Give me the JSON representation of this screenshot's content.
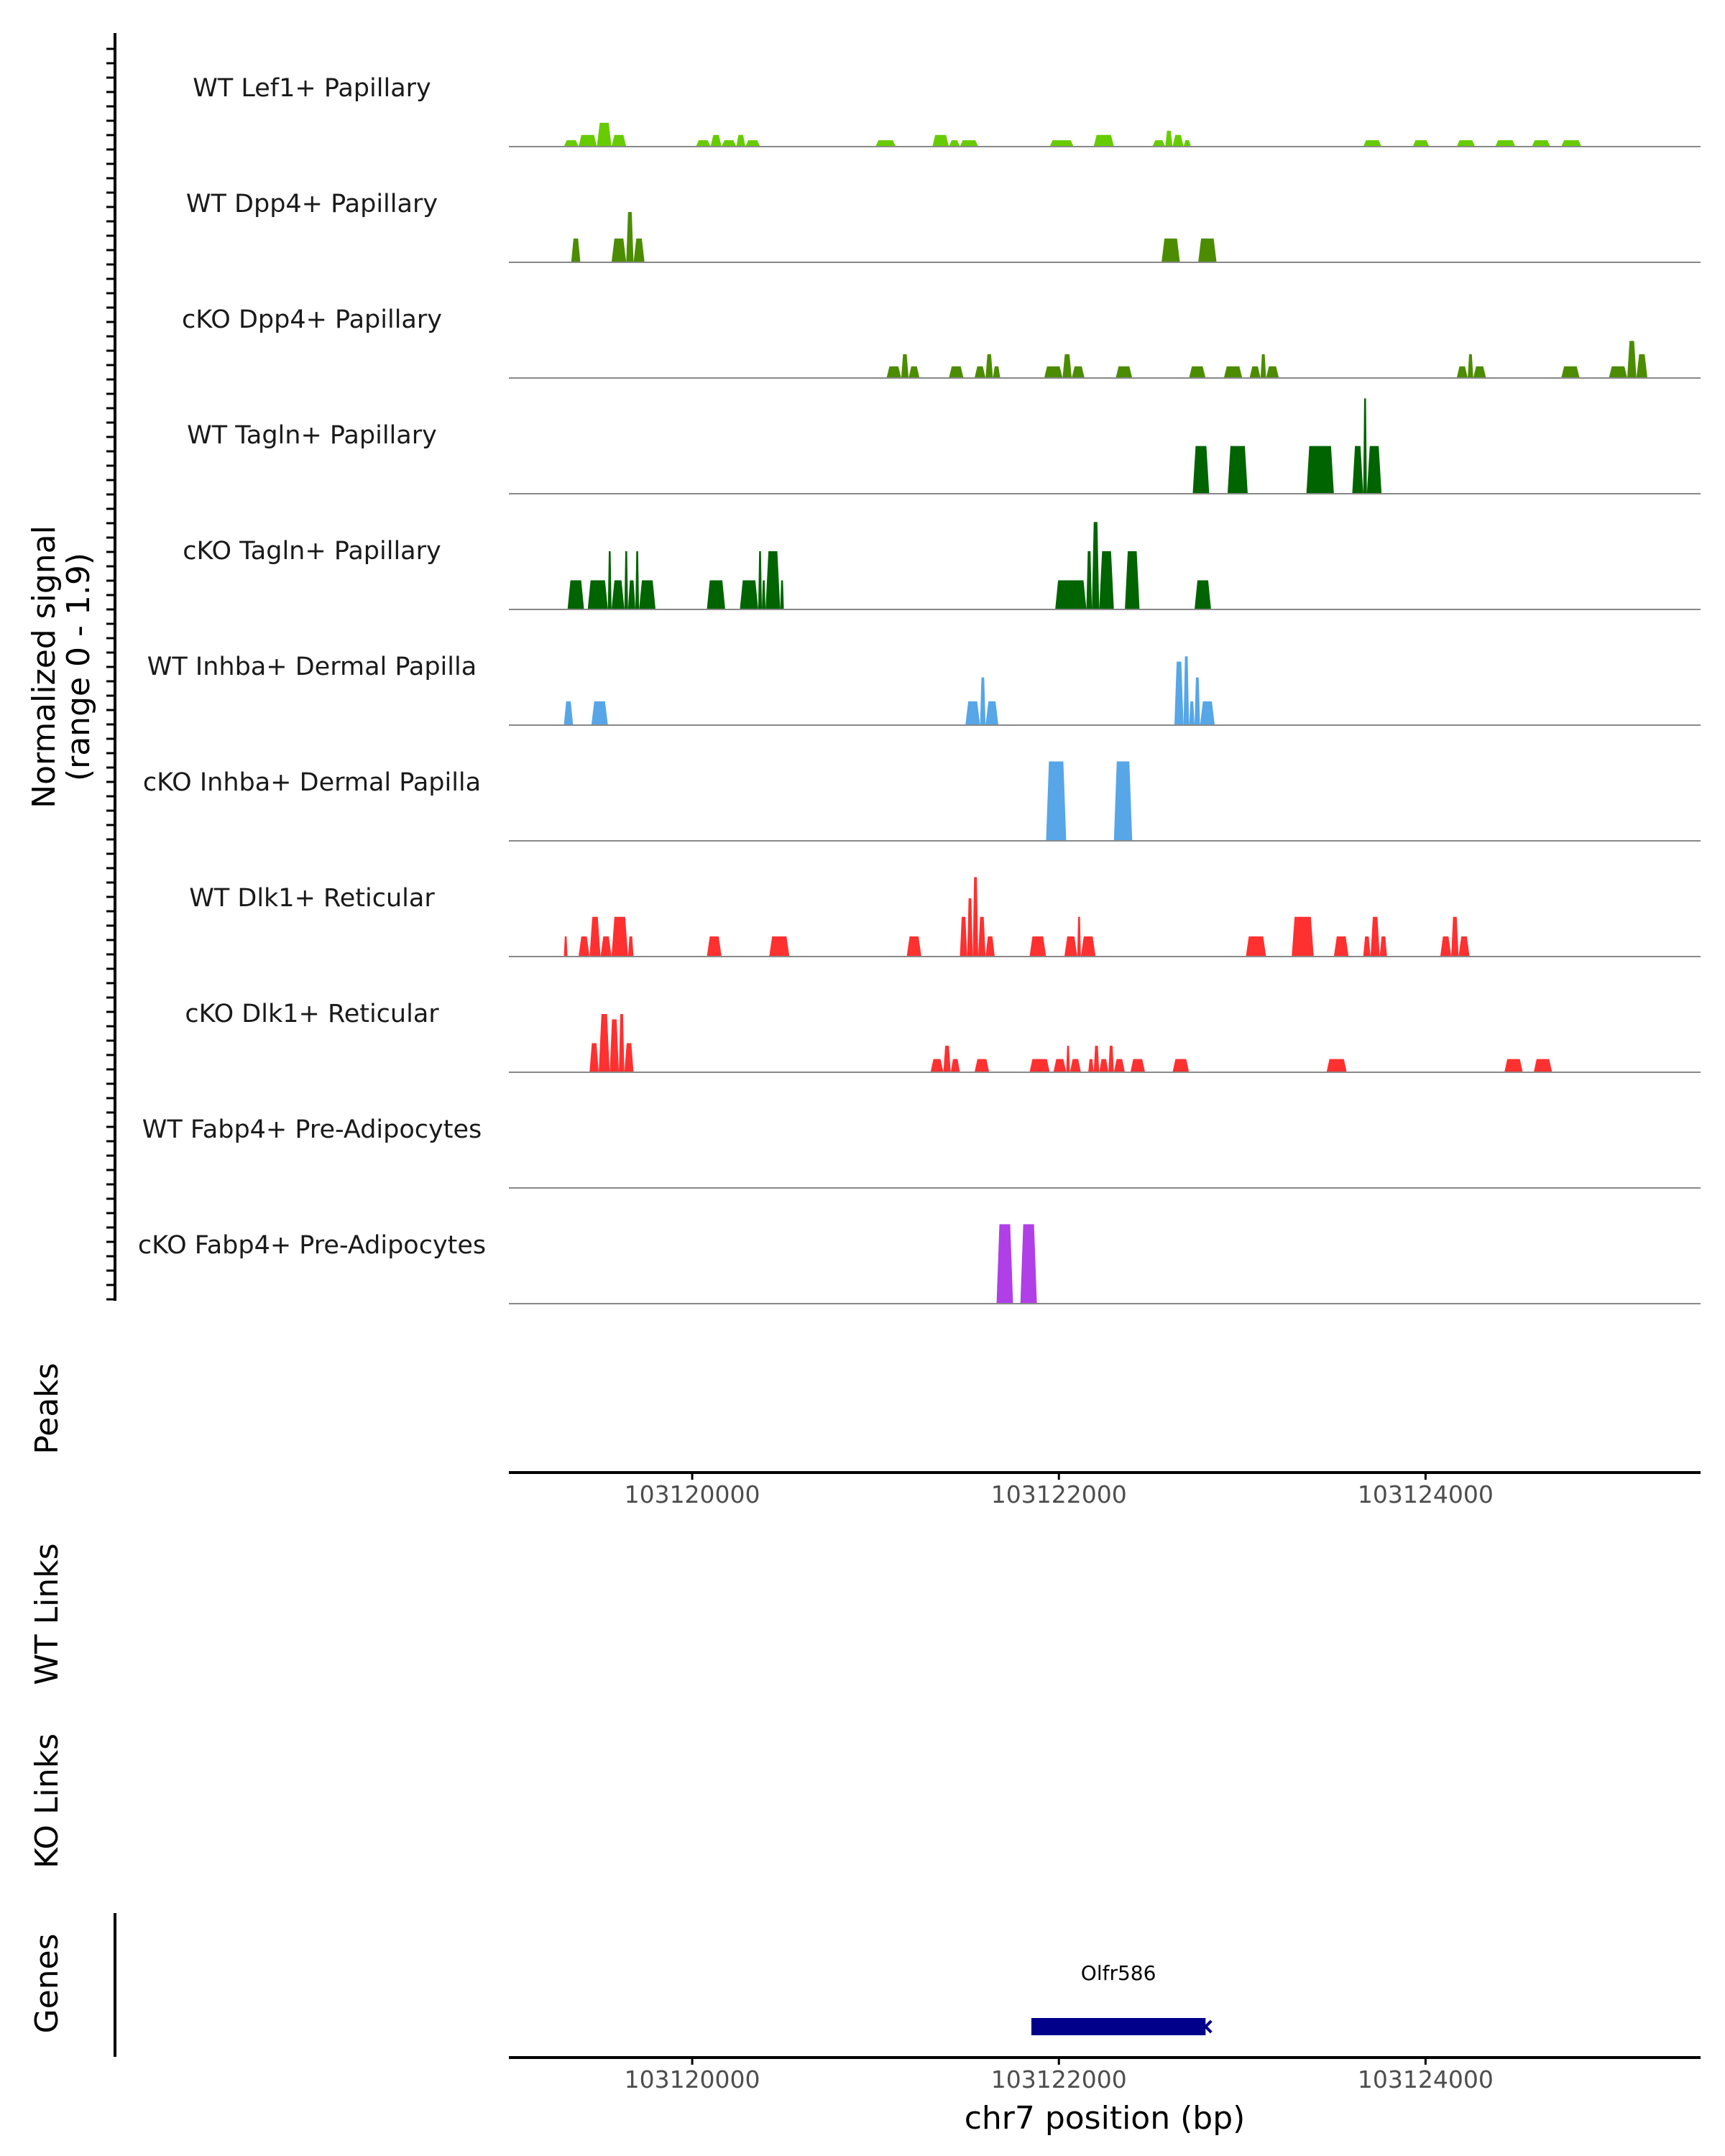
{
  "chart_data": {
    "type": "area",
    "xlabel": "chr7 position (bp)",
    "xlim": [
      103119000,
      103125500
    ],
    "xticks": [
      {
        "value": 103120000,
        "label": "103120000"
      },
      {
        "value": 103122000,
        "label": "103122000"
      },
      {
        "value": 103124000,
        "label": "103124000"
      }
    ],
    "ylabel_line1": "Normalized signal",
    "ylabel_line2": "(range 0 - 1.9)",
    "ylim": [
      0,
      1.9
    ],
    "panels": {
      "peaks": "Peaks",
      "wt_links": "WT Links",
      "ko_links": "KO Links",
      "genes": "Genes"
    },
    "gene": {
      "name": "Olfr586",
      "start": 103121850,
      "end": 103122800,
      "strand": "-",
      "color": "#00008b"
    },
    "tracks": [
      {
        "name": "WT Lef1+ Papillary",
        "color": "#66cc00",
        "blocks": [
          [
            103119300,
            103119380,
            0.12
          ],
          [
            103119380,
            103119480,
            0.22
          ],
          [
            103119480,
            103119560,
            0.45
          ],
          [
            103119560,
            103119640,
            0.22
          ],
          [
            103120020,
            103120100,
            0.12
          ],
          [
            103120100,
            103120160,
            0.22
          ],
          [
            103120160,
            103120240,
            0.12
          ],
          [
            103120240,
            103120290,
            0.22
          ],
          [
            103120290,
            103120370,
            0.12
          ],
          [
            103121000,
            103121110,
            0.12
          ],
          [
            103121310,
            103121400,
            0.22
          ],
          [
            103121400,
            103121460,
            0.12
          ],
          [
            103121460,
            103121560,
            0.12
          ],
          [
            103121950,
            103122080,
            0.12
          ],
          [
            103122190,
            103122300,
            0.22
          ],
          [
            103122510,
            103122580,
            0.12
          ],
          [
            103122580,
            103122620,
            0.3
          ],
          [
            103122620,
            103122680,
            0.22
          ],
          [
            103122680,
            103122720,
            0.12
          ],
          [
            103123660,
            103123760,
            0.12
          ],
          [
            103123930,
            103124020,
            0.12
          ],
          [
            103124170,
            103124270,
            0.12
          ],
          [
            103124380,
            103124490,
            0.12
          ],
          [
            103124580,
            103124680,
            0.12
          ],
          [
            103124740,
            103124850,
            0.12
          ]
        ]
      },
      {
        "name": "WT Dpp4+ Papillary",
        "color": "#4c8c00",
        "blocks": [
          [
            103119340,
            103119390,
            0.45
          ],
          [
            103119560,
            103119640,
            0.45
          ],
          [
            103119640,
            103119680,
            0.95
          ],
          [
            103119680,
            103119740,
            0.45
          ],
          [
            103122560,
            103122660,
            0.45
          ],
          [
            103122760,
            103122860,
            0.45
          ]
        ]
      },
      {
        "name": "cKO Dpp4+ Papillary",
        "color": "#4c8c00",
        "blocks": [
          [
            103121060,
            103121140,
            0.22
          ],
          [
            103121140,
            103121180,
            0.45
          ],
          [
            103121180,
            103121240,
            0.22
          ],
          [
            103121400,
            103121480,
            0.22
          ],
          [
            103121540,
            103121600,
            0.22
          ],
          [
            103121600,
            103121640,
            0.45
          ],
          [
            103121640,
            103121680,
            0.22
          ],
          [
            103121920,
            103122020,
            0.22
          ],
          [
            103122020,
            103122070,
            0.45
          ],
          [
            103122070,
            103122140,
            0.22
          ],
          [
            103122310,
            103122400,
            0.22
          ],
          [
            103122710,
            103122800,
            0.22
          ],
          [
            103122900,
            103123000,
            0.22
          ],
          [
            103123040,
            103123100,
            0.22
          ],
          [
            103123100,
            103123130,
            0.45
          ],
          [
            103123130,
            103123200,
            0.22
          ],
          [
            103124170,
            103124230,
            0.22
          ],
          [
            103124230,
            103124260,
            0.45
          ],
          [
            103124260,
            103124330,
            0.22
          ],
          [
            103124740,
            103124840,
            0.22
          ],
          [
            103125000,
            103125100,
            0.22
          ],
          [
            103125100,
            103125150,
            0.7
          ],
          [
            103125150,
            103125210,
            0.45
          ]
        ]
      },
      {
        "name": "WT Tagln+ Papillary",
        "color": "#006400",
        "blocks": [
          [
            103122730,
            103122820,
            0.9
          ],
          [
            103122920,
            103123030,
            0.9
          ],
          [
            103123350,
            103123500,
            0.9
          ],
          [
            103123600,
            103123660,
            0.9
          ],
          [
            103123660,
            103123680,
            1.8
          ],
          [
            103123680,
            103123760,
            0.9
          ]
        ]
      },
      {
        "name": "cKO Tagln+ Papillary",
        "color": "#006400",
        "blocks": [
          [
            103119320,
            103119410,
            0.55
          ],
          [
            103119430,
            103119540,
            0.55
          ],
          [
            103119540,
            103119560,
            1.1
          ],
          [
            103119560,
            103119630,
            0.55
          ],
          [
            103119630,
            103119650,
            1.1
          ],
          [
            103119650,
            103119690,
            0.55
          ],
          [
            103119690,
            103119710,
            1.1
          ],
          [
            103119710,
            103119800,
            0.55
          ],
          [
            103120080,
            103120180,
            0.55
          ],
          [
            103120260,
            103120360,
            0.55
          ],
          [
            103120360,
            103120380,
            1.1
          ],
          [
            103120380,
            103120400,
            0.55
          ],
          [
            103120400,
            103120480,
            1.1
          ],
          [
            103120480,
            103120500,
            0.55
          ],
          [
            103121980,
            103122150,
            0.55
          ],
          [
            103122150,
            103122180,
            1.1
          ],
          [
            103122180,
            103122220,
            1.65
          ],
          [
            103122220,
            103122300,
            1.1
          ],
          [
            103122360,
            103122440,
            1.1
          ],
          [
            103122740,
            103122830,
            0.55
          ]
        ]
      },
      {
        "name": "WT Inhba+ Dermal Papilla",
        "color": "#56a6e8",
        "blocks": [
          [
            103119300,
            103119350,
            0.45
          ],
          [
            103119450,
            103119540,
            0.45
          ],
          [
            103121490,
            103121570,
            0.45
          ],
          [
            103121570,
            103121600,
            0.9
          ],
          [
            103121600,
            103121670,
            0.45
          ],
          [
            103122630,
            103122680,
            1.2
          ],
          [
            103122680,
            103122710,
            1.3
          ],
          [
            103122710,
            103122740,
            0.45
          ],
          [
            103122740,
            103122770,
            0.9
          ],
          [
            103122770,
            103122850,
            0.45
          ]
        ]
      },
      {
        "name": "cKO Inhba+ Dermal Papilla",
        "color": "#56a6e8",
        "blocks": [
          [
            103121930,
            103122040,
            1.5
          ],
          [
            103122300,
            103122400,
            1.5
          ]
        ]
      },
      {
        "name": "WT Dlk1+ Reticular",
        "color": "#ff3030",
        "blocks": [
          [
            103119300,
            103119320,
            0.38
          ],
          [
            103119380,
            103119440,
            0.38
          ],
          [
            103119440,
            103119500,
            0.75
          ],
          [
            103119500,
            103119560,
            0.38
          ],
          [
            103119560,
            103119650,
            0.75
          ],
          [
            103119650,
            103119680,
            0.38
          ],
          [
            103120080,
            103120160,
            0.38
          ],
          [
            103120420,
            103120530,
            0.38
          ],
          [
            103121170,
            103121250,
            0.38
          ],
          [
            103121460,
            103121500,
            0.75
          ],
          [
            103121500,
            103121530,
            1.1
          ],
          [
            103121530,
            103121560,
            1.5
          ],
          [
            103121560,
            103121600,
            0.75
          ],
          [
            103121600,
            103121650,
            0.38
          ],
          [
            103121840,
            103121930,
            0.38
          ],
          [
            103122030,
            103122100,
            0.38
          ],
          [
            103122100,
            103122120,
            0.75
          ],
          [
            103122120,
            103122200,
            0.38
          ],
          [
            103123020,
            103123130,
            0.38
          ],
          [
            103123270,
            103123390,
            0.75
          ],
          [
            103123500,
            103123580,
            0.38
          ],
          [
            103123660,
            103123700,
            0.38
          ],
          [
            103123700,
            103123750,
            0.75
          ],
          [
            103123750,
            103123790,
            0.38
          ],
          [
            103124080,
            103124140,
            0.38
          ],
          [
            103124140,
            103124180,
            0.75
          ],
          [
            103124180,
            103124240,
            0.38
          ]
        ]
      },
      {
        "name": "cKO Dlk1+ Reticular",
        "color": "#ff3030",
        "blocks": [
          [
            103119440,
            103119490,
            0.55
          ],
          [
            103119490,
            103119550,
            1.1
          ],
          [
            103119550,
            103119600,
            1.0
          ],
          [
            103119600,
            103119630,
            1.1
          ],
          [
            103119630,
            103119680,
            0.55
          ],
          [
            103121300,
            103121370,
            0.25
          ],
          [
            103121370,
            103121410,
            0.5
          ],
          [
            103121410,
            103121460,
            0.25
          ],
          [
            103121540,
            103121620,
            0.25
          ],
          [
            103121840,
            103121950,
            0.25
          ],
          [
            103121970,
            103122040,
            0.25
          ],
          [
            103122040,
            103122060,
            0.5
          ],
          [
            103122060,
            103122120,
            0.25
          ],
          [
            103122160,
            103122190,
            0.25
          ],
          [
            103122190,
            103122220,
            0.5
          ],
          [
            103122220,
            103122270,
            0.25
          ],
          [
            103122270,
            103122300,
            0.5
          ],
          [
            103122300,
            103122360,
            0.25
          ],
          [
            103122390,
            103122470,
            0.25
          ],
          [
            103122620,
            103122710,
            0.25
          ],
          [
            103123460,
            103123570,
            0.25
          ],
          [
            103124430,
            103124530,
            0.25
          ],
          [
            103124590,
            103124690,
            0.25
          ]
        ]
      },
      {
        "name": "WT Fabp4+ Pre-Adipocytes",
        "color": "#b03fe8",
        "blocks": []
      },
      {
        "name": "cKO Fabp4+ Pre-Adipocytes",
        "color": "#b03fe8",
        "blocks": [
          [
            103121660,
            103121750,
            1.5
          ],
          [
            103121790,
            103121880,
            1.5
          ]
        ]
      }
    ]
  }
}
